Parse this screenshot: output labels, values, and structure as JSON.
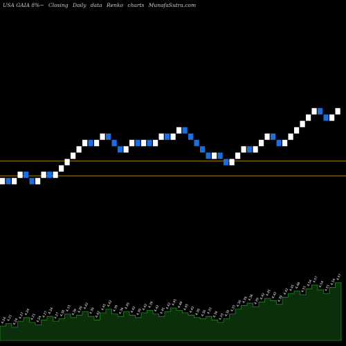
{
  "header": {
    "symbol": "USA GAIA 8%~",
    "parts": [
      "Closing",
      "Daily",
      "data",
      "Renko",
      "charts",
      "MunafaSutra.com"
    ]
  },
  "colors": {
    "background": "#000000",
    "up_brick": "#ffffff",
    "down_brick": "#1a6fe0",
    "support_line": "#b8860b",
    "volume_fill": "#0b2e0b",
    "volume_edge": "#228b22",
    "volume_label": "#ffffff"
  },
  "chart_data": {
    "type": "renko",
    "price_lines": [
      4.32,
      4.25
    ],
    "bricks": [
      {
        "dir": "up",
        "close": 4.24
      },
      {
        "dir": "down",
        "close": 4.21
      },
      {
        "dir": "up",
        "close": 4.24
      },
      {
        "dir": "up",
        "close": 4.27
      },
      {
        "dir": "down",
        "close": 4.24
      },
      {
        "dir": "down",
        "close": 4.21
      },
      {
        "dir": "up",
        "close": 4.24
      },
      {
        "dir": "up",
        "close": 4.27
      },
      {
        "dir": "down",
        "close": 4.24
      },
      {
        "dir": "up",
        "close": 4.27
      },
      {
        "dir": "up",
        "close": 4.3
      },
      {
        "dir": "up",
        "close": 4.33
      },
      {
        "dir": "up",
        "close": 4.36
      },
      {
        "dir": "up",
        "close": 4.39
      },
      {
        "dir": "up",
        "close": 4.42
      },
      {
        "dir": "down",
        "close": 4.39
      },
      {
        "dir": "up",
        "close": 4.42
      },
      {
        "dir": "up",
        "close": 4.45
      },
      {
        "dir": "down",
        "close": 4.42
      },
      {
        "dir": "down",
        "close": 4.39
      },
      {
        "dir": "down",
        "close": 4.36
      },
      {
        "dir": "up",
        "close": 4.39
      },
      {
        "dir": "up",
        "close": 4.42
      },
      {
        "dir": "down",
        "close": 4.39
      },
      {
        "dir": "up",
        "close": 4.42
      },
      {
        "dir": "down",
        "close": 4.39
      },
      {
        "dir": "up",
        "close": 4.42
      },
      {
        "dir": "up",
        "close": 4.45
      },
      {
        "dir": "down",
        "close": 4.42
      },
      {
        "dir": "up",
        "close": 4.45
      },
      {
        "dir": "up",
        "close": 4.48
      },
      {
        "dir": "down",
        "close": 4.45
      },
      {
        "dir": "down",
        "close": 4.42
      },
      {
        "dir": "down",
        "close": 4.39
      },
      {
        "dir": "down",
        "close": 4.36
      },
      {
        "dir": "down",
        "close": 4.33
      },
      {
        "dir": "up",
        "close": 4.36
      },
      {
        "dir": "down",
        "close": 4.33
      },
      {
        "dir": "down",
        "close": 4.3
      },
      {
        "dir": "up",
        "close": 4.33
      },
      {
        "dir": "up",
        "close": 4.36
      },
      {
        "dir": "up",
        "close": 4.39
      },
      {
        "dir": "down",
        "close": 4.36
      },
      {
        "dir": "up",
        "close": 4.39
      },
      {
        "dir": "up",
        "close": 4.42
      },
      {
        "dir": "up",
        "close": 4.45
      },
      {
        "dir": "down",
        "close": 4.42
      },
      {
        "dir": "down",
        "close": 4.39
      },
      {
        "dir": "up",
        "close": 4.42
      },
      {
        "dir": "up",
        "close": 4.45
      },
      {
        "dir": "up",
        "close": 4.48
      },
      {
        "dir": "up",
        "close": 4.51
      },
      {
        "dir": "up",
        "close": 4.54
      },
      {
        "dir": "up",
        "close": 4.57
      },
      {
        "dir": "down",
        "close": 4.54
      },
      {
        "dir": "down",
        "close": 4.51
      },
      {
        "dir": "up",
        "close": 4.54
      },
      {
        "dir": "up",
        "close": 4.57
      }
    ],
    "volume": [
      1.2,
      1.4,
      1.1,
      1.6,
      1.9,
      1.5,
      1.3,
      1.7,
      2.0,
      1.6,
      1.8,
      2.2,
      1.9,
      2.1,
      2.4,
      2.0,
      1.7,
      2.3,
      2.6,
      2.2,
      2.0,
      2.4,
      2.1,
      1.9,
      2.3,
      2.5,
      2.2,
      2.0,
      2.4,
      2.7,
      2.5,
      2.3,
      2.1,
      1.9,
      1.8,
      2.0,
      1.7,
      1.5,
      1.8,
      2.2,
      2.6,
      2.9,
      3.1,
      2.8,
      3.2,
      3.5,
      3.3,
      3.0,
      3.6,
      3.9,
      4.1,
      3.8,
      4.3,
      4.6,
      4.2,
      3.9,
      4.4,
      4.8
    ],
    "volume_labels": [
      "4.24",
      "4.21",
      "4.24",
      "4.27",
      "4.24",
      "4.21",
      "4.24",
      "4.27",
      "4.24",
      "4.27",
      "4.30",
      "4.33",
      "4.36",
      "4.39",
      "4.42",
      "4.39",
      "4.42",
      "4.45",
      "4.42",
      "4.39",
      "4.36",
      "4.39",
      "4.42",
      "4.39",
      "4.42",
      "4.39",
      "4.42",
      "4.45",
      "4.42",
      "4.45",
      "4.48",
      "4.45",
      "4.42",
      "4.39",
      "4.36",
      "4.33",
      "4.36",
      "4.33",
      "4.30",
      "4.33",
      "4.36",
      "4.39",
      "4.36",
      "4.39",
      "4.42",
      "4.45",
      "4.42",
      "4.39",
      "4.42",
      "4.45",
      "4.48",
      "4.51",
      "4.54",
      "4.57",
      "4.54",
      "4.51",
      "4.54",
      "4.57"
    ],
    "y_range": [
      4.1,
      4.95
    ],
    "volume_range": [
      0,
      5.0
    ]
  }
}
